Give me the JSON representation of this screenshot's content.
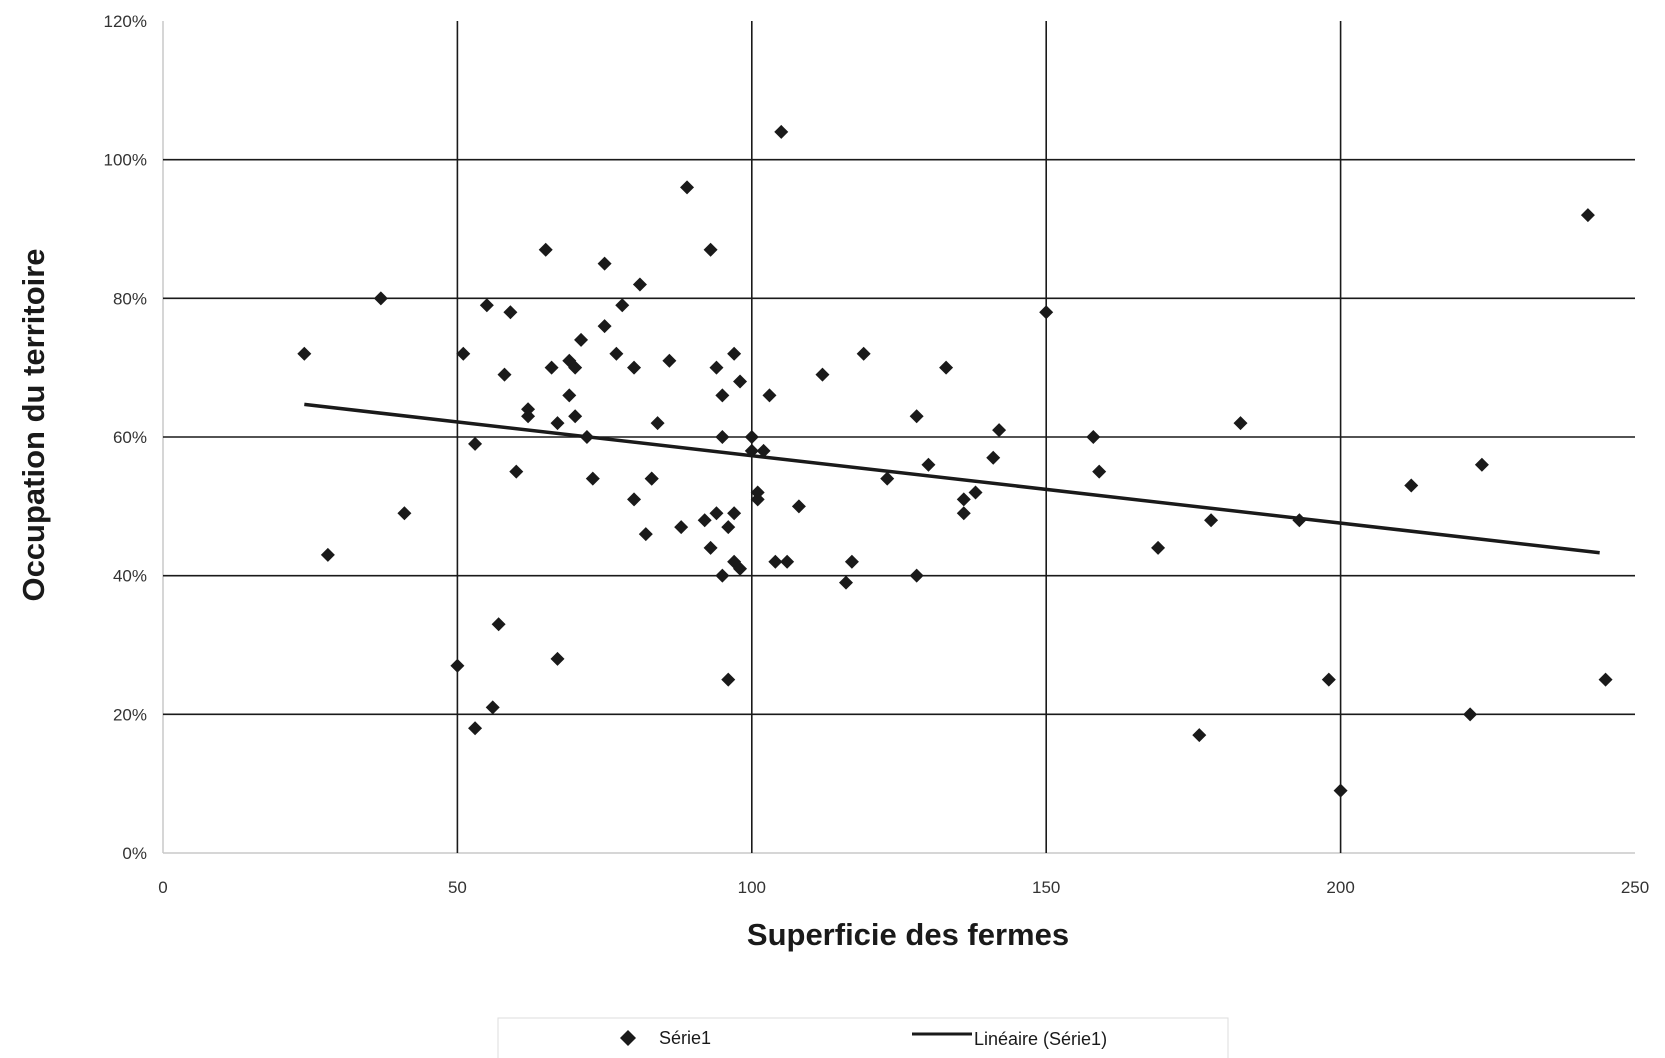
{
  "chart_data": {
    "type": "scatter",
    "xlabel": "Superficie des fermes",
    "ylabel": "Occupation du territoire",
    "xlim": [
      0,
      250
    ],
    "ylim": [
      0,
      1.2
    ],
    "x_ticks": [
      0,
      50,
      100,
      150,
      200,
      250
    ],
    "x_tick_labels": [
      "0",
      "50",
      "100",
      "150",
      "200",
      "250"
    ],
    "y_ticks": [
      0,
      0.2,
      0.4,
      0.6,
      0.8,
      1.0,
      1.2
    ],
    "y_tick_labels": [
      "0%",
      "20%",
      "40%",
      "60%",
      "80%",
      "100%",
      "120%"
    ],
    "grid": true,
    "legend_position": "bottom",
    "marker_color": "#1a1a1a",
    "series": [
      {
        "name": "Série1",
        "marker": "diamond",
        "points": [
          [
            24,
            0.72
          ],
          [
            28,
            0.43
          ],
          [
            37,
            0.8
          ],
          [
            41,
            0.49
          ],
          [
            50,
            0.27
          ],
          [
            51,
            0.72
          ],
          [
            53,
            0.59
          ],
          [
            53,
            0.18
          ],
          [
            55,
            0.79
          ],
          [
            56,
            0.21
          ],
          [
            57,
            0.33
          ],
          [
            58,
            0.69
          ],
          [
            59,
            0.78
          ],
          [
            60,
            0.55
          ],
          [
            62,
            0.64
          ],
          [
            62,
            0.63
          ],
          [
            65,
            0.87
          ],
          [
            66,
            0.7
          ],
          [
            67,
            0.28
          ],
          [
            67,
            0.62
          ],
          [
            69,
            0.66
          ],
          [
            69,
            0.71
          ],
          [
            70,
            0.63
          ],
          [
            70,
            0.7
          ],
          [
            71,
            0.74
          ],
          [
            72,
            0.6
          ],
          [
            73,
            0.54
          ],
          [
            75,
            0.85
          ],
          [
            75,
            0.76
          ],
          [
            77,
            0.72
          ],
          [
            78,
            0.79
          ],
          [
            80,
            0.7
          ],
          [
            80,
            0.51
          ],
          [
            81,
            0.82
          ],
          [
            82,
            0.46
          ],
          [
            83,
            0.54
          ],
          [
            83,
            0.54
          ],
          [
            84,
            0.62
          ],
          [
            86,
            0.71
          ],
          [
            88,
            0.47
          ],
          [
            89,
            0.96
          ],
          [
            92,
            0.48
          ],
          [
            93,
            0.44
          ],
          [
            93,
            0.87
          ],
          [
            94,
            0.7
          ],
          [
            94,
            0.49
          ],
          [
            95,
            0.66
          ],
          [
            95,
            0.4
          ],
          [
            95,
            0.6
          ],
          [
            96,
            0.47
          ],
          [
            96,
            0.25
          ],
          [
            97,
            0.72
          ],
          [
            97,
            0.42
          ],
          [
            97,
            0.49
          ],
          [
            98,
            0.41
          ],
          [
            98,
            0.68
          ],
          [
            100,
            0.6
          ],
          [
            100,
            0.58
          ],
          [
            101,
            0.52
          ],
          [
            101,
            0.51
          ],
          [
            102,
            0.58
          ],
          [
            103,
            0.66
          ],
          [
            104,
            0.42
          ],
          [
            105,
            1.04
          ],
          [
            106,
            0.42
          ],
          [
            108,
            0.5
          ],
          [
            112,
            0.69
          ],
          [
            116,
            0.39
          ],
          [
            117,
            0.42
          ],
          [
            119,
            0.72
          ],
          [
            123,
            0.54
          ],
          [
            128,
            0.63
          ],
          [
            128,
            0.4
          ],
          [
            130,
            0.56
          ],
          [
            133,
            0.7
          ],
          [
            136,
            0.51
          ],
          [
            136,
            0.49
          ],
          [
            138,
            0.52
          ],
          [
            141,
            0.57
          ],
          [
            142,
            0.61
          ],
          [
            150,
            0.78
          ],
          [
            158,
            0.6
          ],
          [
            159,
            0.55
          ],
          [
            169,
            0.44
          ],
          [
            176,
            0.17
          ],
          [
            178,
            0.48
          ],
          [
            183,
            0.62
          ],
          [
            193,
            0.48
          ],
          [
            198,
            0.25
          ],
          [
            200,
            0.09
          ],
          [
            212,
            0.53
          ],
          [
            222,
            0.2
          ],
          [
            224,
            0.56
          ],
          [
            242,
            0.92
          ],
          [
            245,
            0.25
          ]
        ]
      },
      {
        "name": "Linéaire (Série1)",
        "type": "line",
        "x": [
          24,
          244
        ],
        "y": [
          0.647,
          0.433
        ]
      }
    ]
  }
}
